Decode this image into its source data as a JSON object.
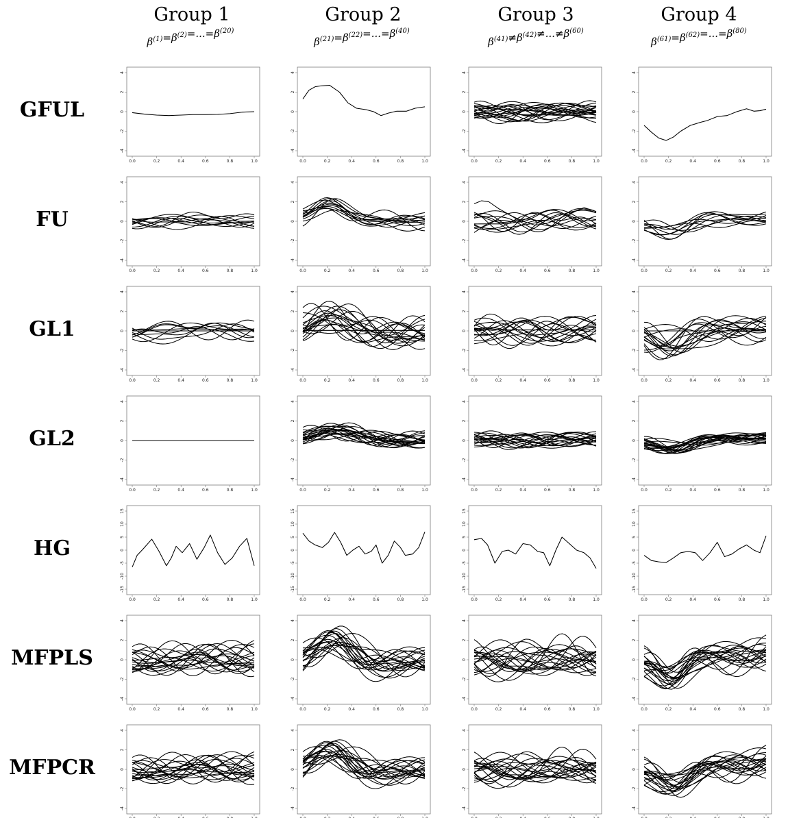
{
  "groups": [
    {
      "title": "Group 1",
      "subtitle": "β(1)=β(2)=...=β(20)"
    },
    {
      "title": "Group 2",
      "subtitle": "β(21)=β(22)=...=β(40)"
    },
    {
      "title": "Group 3",
      "subtitle": "β(41)≠β(42)≠...≠β(60)"
    },
    {
      "title": "Group 4",
      "subtitle": "β(61)=β(62)=...=β(80)"
    }
  ],
  "methods": [
    "GFUL",
    "FU",
    "GL1",
    "GL2",
    "HG",
    "MFPLS",
    "MFPCR"
  ],
  "chart_data": {
    "type": "line",
    "x_ticks": [
      "0.0",
      "0.2",
      "0.4",
      "0.6",
      "0.8",
      "1.0"
    ],
    "xlim": [
      0,
      1
    ],
    "y_ticks_default": [
      "-4",
      "-2",
      "0",
      "2",
      "4"
    ],
    "ylim_default": [
      -4,
      4
    ],
    "y_ticks_hg": [
      "-15",
      "-10",
      "-5",
      "0",
      "5",
      "10",
      "15"
    ],
    "ylim_hg": [
      -15,
      15
    ],
    "panels": {
      "GFUL": [
        {
          "curves": [
            [
              0.0,
              -0.1,
              0.1,
              -0.25,
              0.2,
              -0.35,
              0.3,
              -0.4,
              0.4,
              -0.35,
              0.5,
              -0.3,
              0.6,
              -0.3,
              0.7,
              -0.28,
              0.8,
              -0.2,
              0.9,
              -0.05,
              1.0,
              0.0
            ]
          ],
          "n_extra": 0
        },
        {
          "curves": [
            [
              0.0,
              1.3,
              0.05,
              2.2,
              0.1,
              2.55,
              0.15,
              2.65,
              0.22,
              2.7,
              0.3,
              2.0,
              0.37,
              0.9,
              0.44,
              0.35,
              0.52,
              0.2,
              0.58,
              0.0,
              0.64,
              -0.4,
              0.7,
              -0.15,
              0.77,
              0.05,
              0.85,
              0.05,
              0.92,
              0.35,
              1.0,
              0.5
            ]
          ],
          "n_extra": 0
        },
        {
          "curves": [],
          "n_extra": 20
        },
        {
          "curves": [
            [
              0.0,
              -1.4,
              0.06,
              -2.1,
              0.12,
              -2.7,
              0.18,
              -2.95,
              0.24,
              -2.6,
              0.3,
              -2.0,
              0.38,
              -1.4,
              0.46,
              -1.1,
              0.52,
              -0.9,
              0.6,
              -0.5,
              0.68,
              -0.4,
              0.76,
              0.0,
              0.84,
              0.3,
              0.9,
              0.05,
              0.95,
              0.1,
              1.0,
              0.25
            ]
          ],
          "n_extra": 0
        }
      ],
      "FU": [
        {
          "curves": [],
          "n_extra": 10
        },
        {
          "curves": [],
          "n_extra": 12
        },
        {
          "curves": [
            [
              0.0,
              1.8,
              0.06,
              2.1,
              0.12,
              2.0,
              0.2,
              1.3,
              0.3,
              0.6,
              0.4,
              0.0,
              0.5,
              -0.4,
              0.6,
              -0.2,
              0.7,
              0.3,
              0.8,
              0.9,
              0.9,
              1.4,
              1.0,
              1.0
            ]
          ],
          "n_extra": 12
        },
        {
          "curves": [],
          "n_extra": 10
        }
      ],
      "GL1": [
        {
          "curves": [
            [
              0.0,
              0.0,
              1.0,
              0.0
            ]
          ],
          "n_extra": 9
        },
        {
          "curves": [
            [
              0.0,
              0.05,
              0.5,
              0.05,
              1.0,
              0.05
            ]
          ],
          "n_extra": 18
        },
        {
          "curves": [
            [
              0.0,
              0.1,
              0.5,
              0.1,
              1.0,
              0.1
            ]
          ],
          "n_extra": 16
        },
        {
          "curves": [
            [
              0.0,
              0.0,
              0.5,
              0.0,
              1.0,
              0.0
            ]
          ],
          "n_extra": 16
        }
      ],
      "GL2": [
        {
          "curves": [
            [
              0.0,
              0.0,
              1.0,
              0.0
            ]
          ],
          "n_extra": 0
        },
        {
          "curves": [],
          "n_extra": 20
        },
        {
          "curves": [],
          "n_extra": 18
        },
        {
          "curves": [],
          "n_extra": 20
        }
      ],
      "HG": [
        {
          "curves": [
            [
              0.0,
              -6.5,
              0.04,
              -2.0,
              0.09,
              0.5,
              0.16,
              4.2,
              0.22,
              -0.5,
              0.28,
              -6.0,
              0.32,
              -3.0,
              0.36,
              1.5,
              0.41,
              -1.0,
              0.47,
              2.5,
              0.53,
              -3.5,
              0.59,
              1.0,
              0.64,
              5.8,
              0.7,
              -1.0,
              0.76,
              -5.5,
              0.82,
              -3.0,
              0.88,
              1.5,
              0.94,
              4.5,
              1.0,
              -6.0
            ]
          ],
          "n_extra": 0
        },
        {
          "curves": [
            [
              0.0,
              6.5,
              0.05,
              3.5,
              0.1,
              2.0,
              0.16,
              1.0,
              0.21,
              3.0,
              0.26,
              6.8,
              0.31,
              3.0,
              0.36,
              -2.0,
              0.41,
              0.0,
              0.46,
              1.5,
              0.51,
              -1.5,
              0.56,
              -0.5,
              0.6,
              2.0,
              0.65,
              -5.0,
              0.7,
              -2.0,
              0.75,
              3.5,
              0.8,
              1.0,
              0.84,
              -2.0,
              0.9,
              -1.5,
              0.95,
              1.0,
              1.0,
              7.0
            ]
          ],
          "n_extra": 0
        },
        {
          "curves": [
            [
              0.0,
              4.0,
              0.06,
              4.5,
              0.11,
              2.0,
              0.17,
              -5.0,
              0.23,
              -0.5,
              0.28,
              0.0,
              0.34,
              -1.5,
              0.4,
              2.5,
              0.46,
              2.0,
              0.52,
              -0.5,
              0.57,
              -1.0,
              0.62,
              -6.0,
              0.67,
              0.0,
              0.72,
              5.0,
              0.78,
              2.5,
              0.84,
              0.0,
              0.9,
              -1.0,
              0.95,
              -3.0,
              1.0,
              -7.0
            ]
          ],
          "n_extra": 0
        },
        {
          "curves": [
            [
              0.0,
              -2.0,
              0.06,
              -4.0,
              0.12,
              -4.5,
              0.18,
              -4.8,
              0.24,
              -3.0,
              0.3,
              -1.0,
              0.36,
              -0.5,
              0.42,
              -1.0,
              0.48,
              -4.0,
              0.54,
              -1.0,
              0.6,
              3.0,
              0.66,
              -2.5,
              0.72,
              -1.5,
              0.78,
              0.5,
              0.84,
              2.0,
              0.9,
              0.0,
              0.95,
              -1.0,
              1.0,
              5.5
            ]
          ],
          "n_extra": 0
        }
      ],
      "MFPLS": [
        {
          "curves": [],
          "n_extra": 20
        },
        {
          "curves": [],
          "n_extra": 20
        },
        {
          "curves": [],
          "n_extra": 20
        },
        {
          "curves": [],
          "n_extra": 20
        }
      ],
      "MFPCR": [
        {
          "curves": [],
          "n_extra": 20
        },
        {
          "curves": [],
          "n_extra": 20
        },
        {
          "curves": [],
          "n_extra": 20
        },
        {
          "curves": [],
          "n_extra": 20
        }
      ]
    }
  }
}
